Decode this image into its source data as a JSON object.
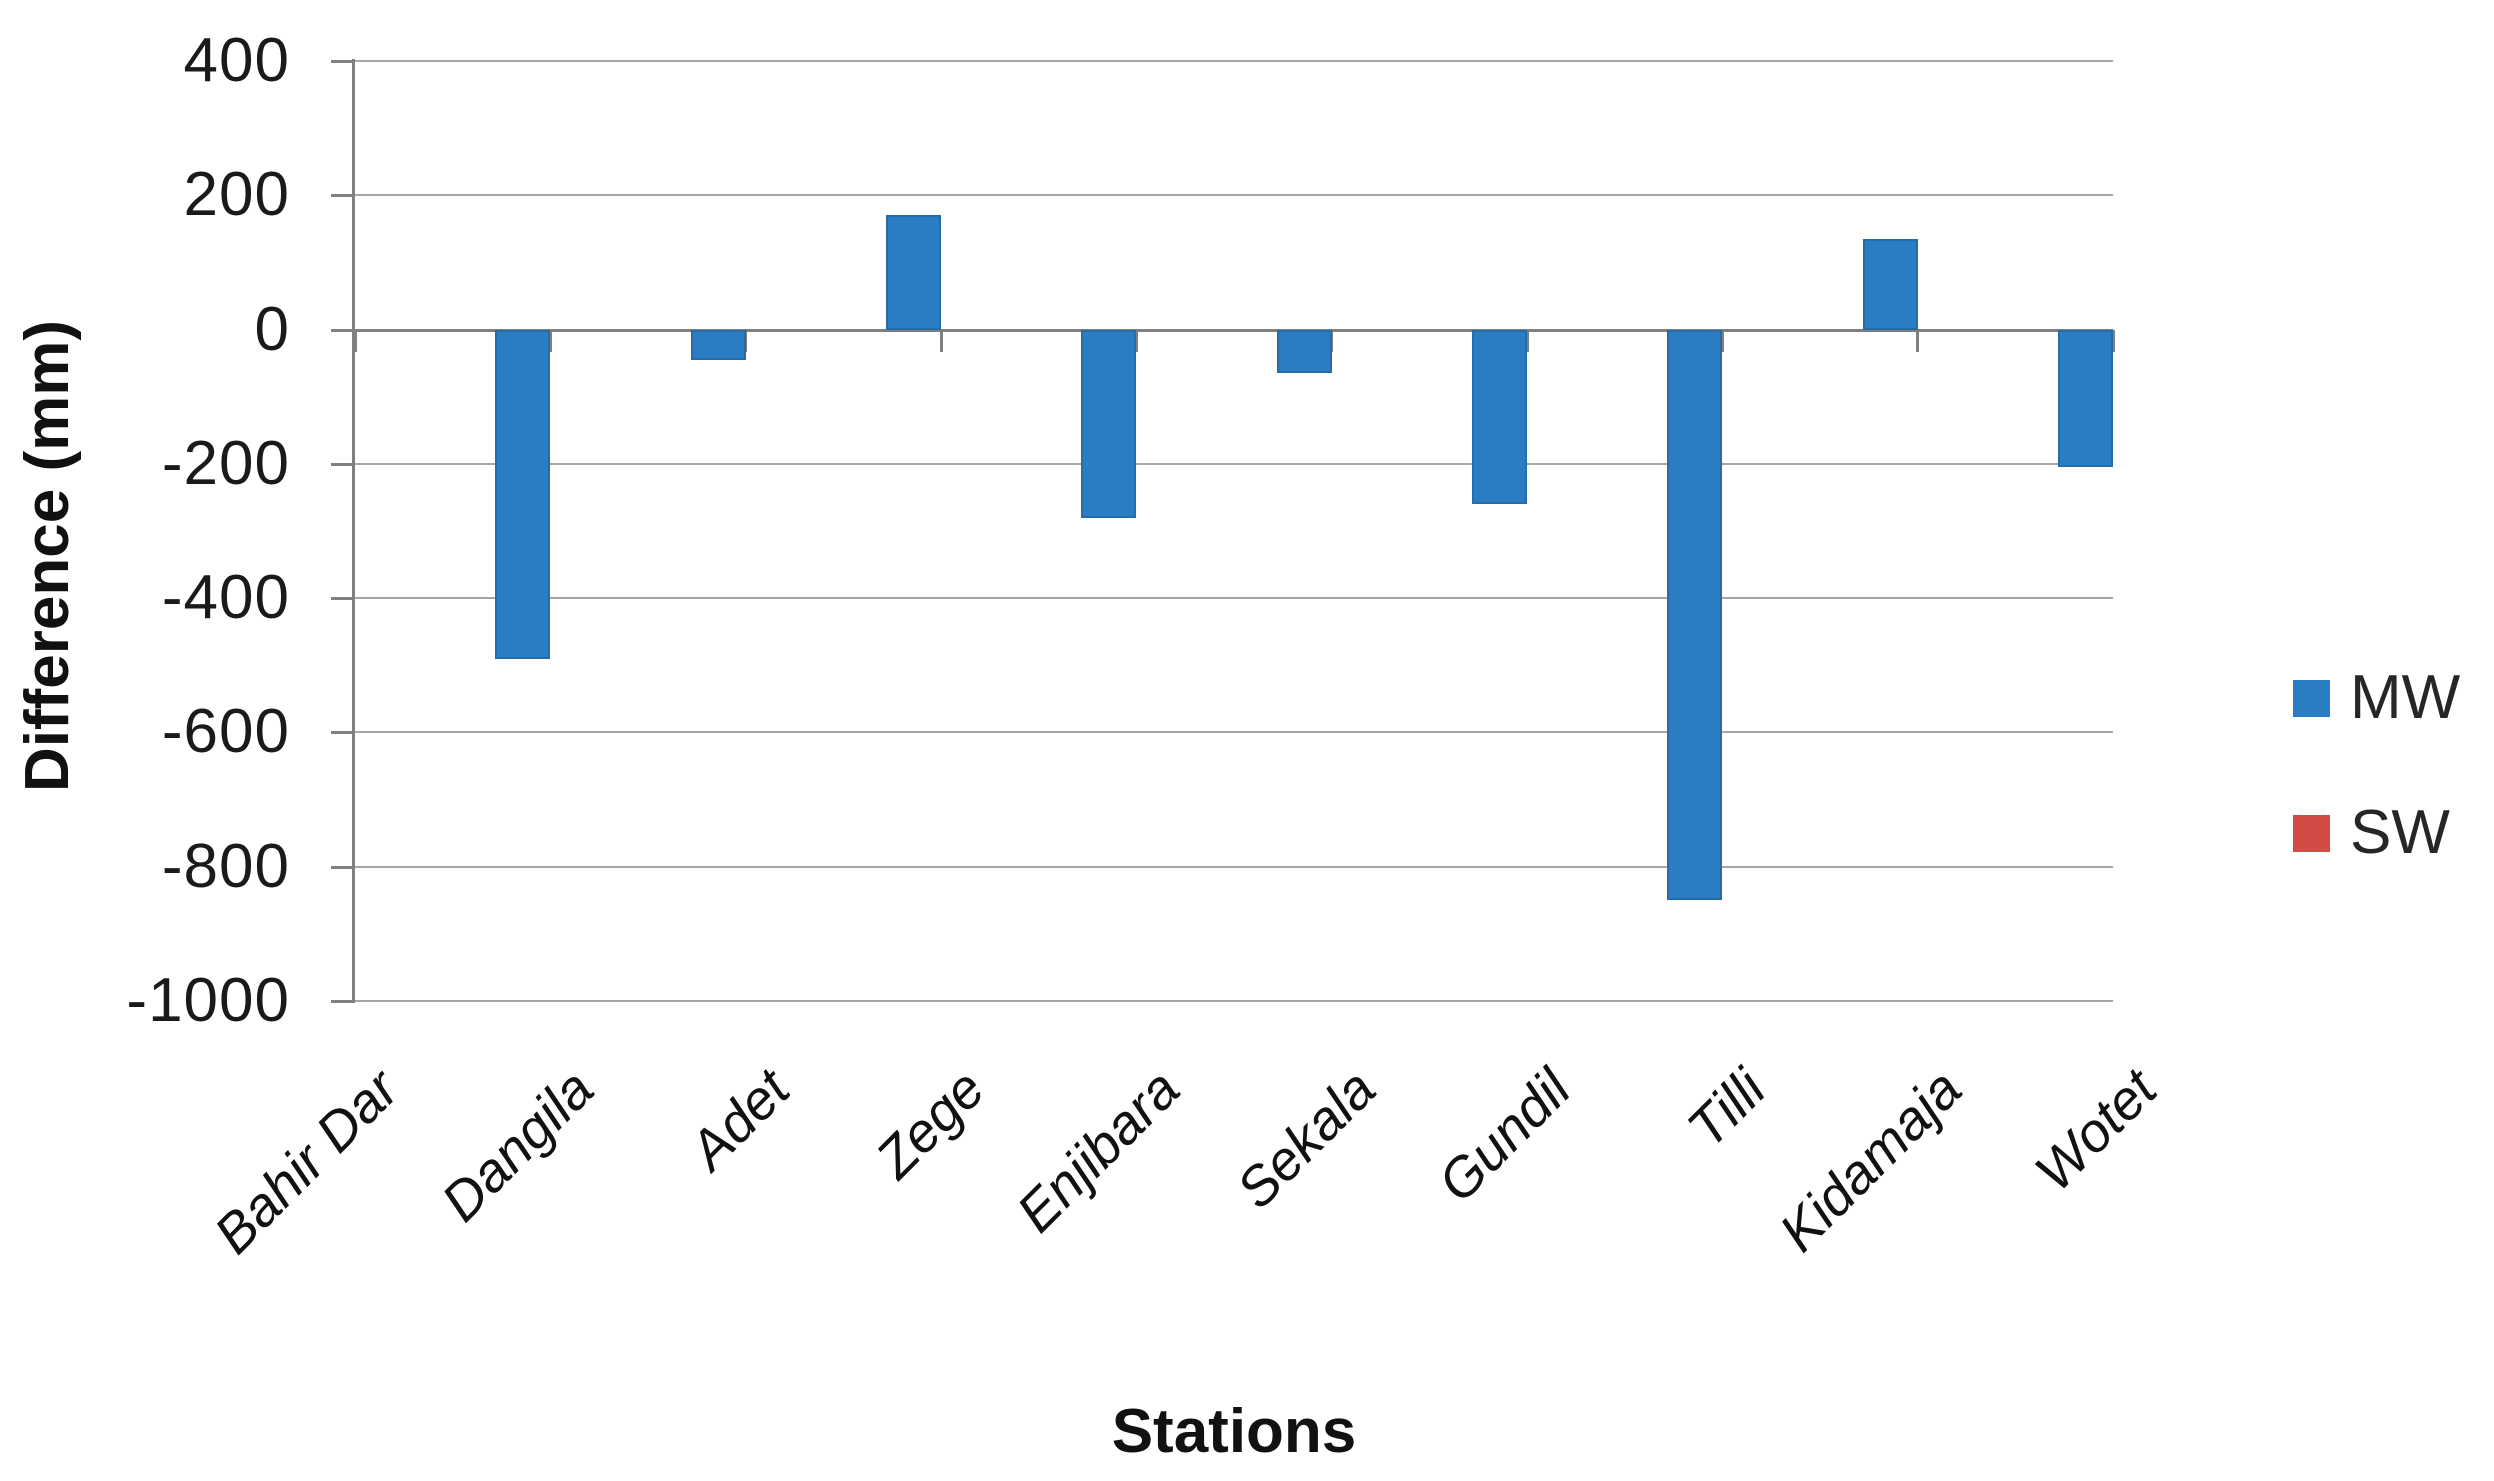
{
  "chart_data": {
    "type": "bar",
    "title": "",
    "categories": [
      "Bahir Dar",
      "Dangila",
      "Adet",
      "Zege",
      "Enjibara",
      "Sekala",
      "Gundil",
      "Tilli",
      "Kidamaja",
      "Wotet"
    ],
    "series": [
      {
        "name": "MW",
        "color": "#2a7dc2",
        "values": [
          0,
          -490,
          -45,
          170,
          -280,
          -65,
          -260,
          -850,
          135,
          -205
        ]
      },
      {
        "name": "SW",
        "color": "#d24b45",
        "values": [
          0,
          0,
          0,
          0,
          0,
          0,
          0,
          0,
          0,
          0
        ]
      }
    ],
    "xlabel": "Stations",
    "ylabel": "Difference (mm)",
    "ylim": [
      -1000,
      400
    ],
    "yticks": [
      400,
      200,
      0,
      -200,
      -400,
      -600,
      -800,
      -1000
    ],
    "grid": true,
    "gridline_color": "#a6a6a6",
    "legend_position": "right",
    "bar_color_mw": "#2a7dc2",
    "bar_color_sw": "#d24b45"
  },
  "legend": {
    "items": [
      {
        "label": "MW",
        "color": "#2a7dc2"
      },
      {
        "label": "SW",
        "color": "#d24b45"
      }
    ]
  },
  "axes": {
    "y_title": "Difference (mm)",
    "x_title": "Stations"
  }
}
